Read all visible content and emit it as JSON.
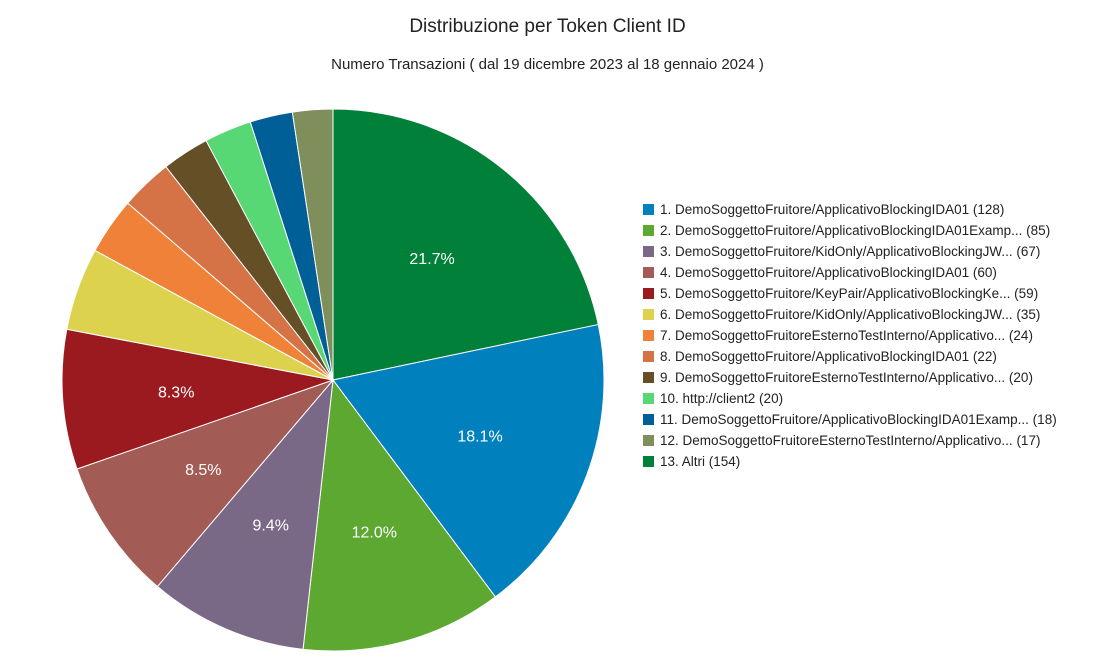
{
  "chart_data": {
    "type": "pie",
    "title": "Distribuzione per Token Client ID",
    "subtitle": "Numero Transazioni ( dal 19 dicembre 2023 al 18 gennaio 2024 )",
    "legend_position": "right",
    "slices": [
      {
        "label": "1. DemoSoggettoFruitore/ApplicativoBlockingIDA01 (128)",
        "value": 128,
        "percent_label": "18.1%",
        "color": "#0081BE"
      },
      {
        "label": "2. DemoSoggettoFruitore/ApplicativoBlockingIDA01Examp... (85)",
        "value": 85,
        "percent_label": "12.0%",
        "color": "#5DA831"
      },
      {
        "label": "3. DemoSoggettoFruitore/KidOnly/ApplicativoBlockingJW... (67)",
        "value": 67,
        "percent_label": "9.4%",
        "color": "#7A6887"
      },
      {
        "label": "4. DemoSoggettoFruitore/ApplicativoBlockingIDA01 (60)",
        "value": 60,
        "percent_label": "8.5%",
        "color": "#A25B55"
      },
      {
        "label": "5. DemoSoggettoFruitore/KeyPair/ApplicativoBlockingKe... (59)",
        "value": 59,
        "percent_label": "8.3%",
        "color": "#9B1A20"
      },
      {
        "label": "6. DemoSoggettoFruitore/KidOnly/ApplicativoBlockingJW... (35)",
        "value": 35,
        "percent_label": "",
        "color": "#DCD24E"
      },
      {
        "label": "7. DemoSoggettoFruitoreEsternoTestInterno/Applicativo... (24)",
        "value": 24,
        "percent_label": "",
        "color": "#EF8138"
      },
      {
        "label": "8. DemoSoggettoFruitore/ApplicativoBlockingIDA01 (22)",
        "value": 22,
        "percent_label": "",
        "color": "#D67346"
      },
      {
        "label": "9. DemoSoggettoFruitoreEsternoTestInterno/Applicativo... (20)",
        "value": 20,
        "percent_label": "",
        "color": "#644F27"
      },
      {
        "label": "10. http://client2 (20)",
        "value": 20,
        "percent_label": "",
        "color": "#58D874"
      },
      {
        "label": "11. DemoSoggettoFruitore/ApplicativoBlockingIDA01Examp... (18)",
        "value": 18,
        "percent_label": "",
        "color": "#005F96"
      },
      {
        "label": "12. DemoSoggettoFruitoreEsternoTestInterno/Applicativo... (17)",
        "value": 17,
        "percent_label": "",
        "color": "#7E8F5C"
      },
      {
        "label": "13. Altri (154)",
        "value": 154,
        "percent_label": "21.7%",
        "color": "#01803A"
      }
    ]
  }
}
